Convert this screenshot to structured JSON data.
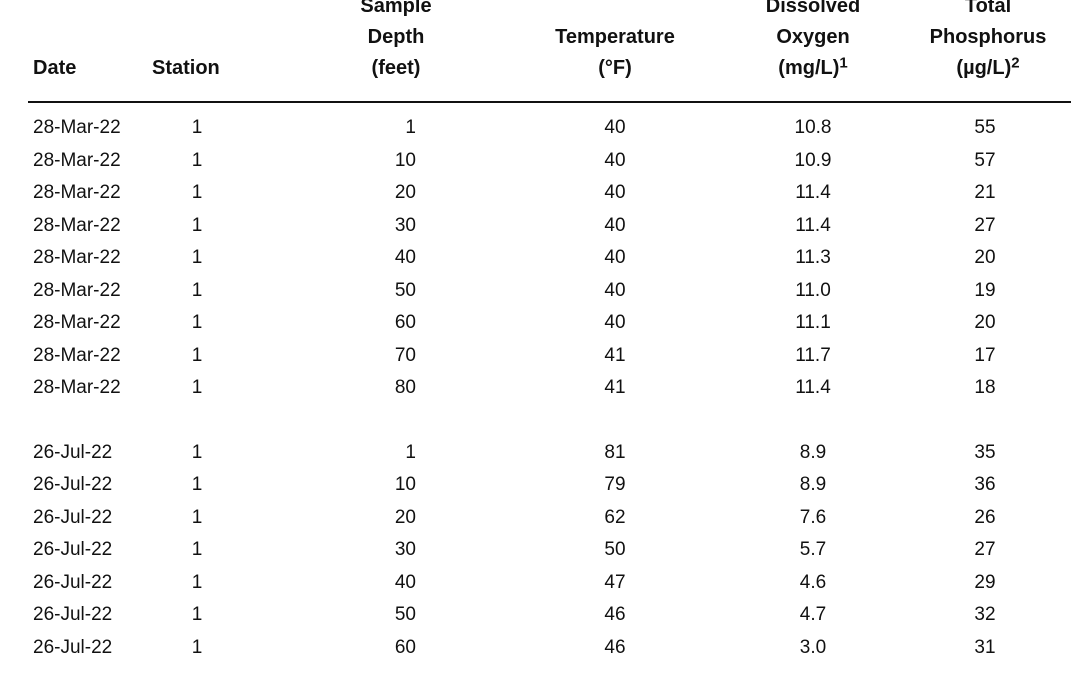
{
  "table": {
    "headers": {
      "date": [
        "Date"
      ],
      "station": [
        "Station"
      ],
      "depth": [
        "Sample",
        "Depth",
        "(feet)"
      ],
      "temperature": [
        "Temperature",
        "(°F)"
      ],
      "dissolved_oxygen": [
        "Dissolved",
        "Oxygen",
        "(mg/L)"
      ],
      "dissolved_oxygen_note": "1",
      "total_phosphorus": [
        "Total",
        "Phosphorus",
        "(µg/L)"
      ],
      "total_phosphorus_note": "2"
    },
    "groups": [
      {
        "rows": [
          {
            "date": "28-Mar-22",
            "station": "1",
            "depth": "1",
            "temperature": "40",
            "dissolved_oxygen": "10.8",
            "total_phosphorus": "55"
          },
          {
            "date": "28-Mar-22",
            "station": "1",
            "depth": "10",
            "temperature": "40",
            "dissolved_oxygen": "10.9",
            "total_phosphorus": "57"
          },
          {
            "date": "28-Mar-22",
            "station": "1",
            "depth": "20",
            "temperature": "40",
            "dissolved_oxygen": "11.4",
            "total_phosphorus": "21"
          },
          {
            "date": "28-Mar-22",
            "station": "1",
            "depth": "30",
            "temperature": "40",
            "dissolved_oxygen": "11.4",
            "total_phosphorus": "27"
          },
          {
            "date": "28-Mar-22",
            "station": "1",
            "depth": "40",
            "temperature": "40",
            "dissolved_oxygen": "11.3",
            "total_phosphorus": "20"
          },
          {
            "date": "28-Mar-22",
            "station": "1",
            "depth": "50",
            "temperature": "40",
            "dissolved_oxygen": "11.0",
            "total_phosphorus": "19"
          },
          {
            "date": "28-Mar-22",
            "station": "1",
            "depth": "60",
            "temperature": "40",
            "dissolved_oxygen": "11.1",
            "total_phosphorus": "20"
          },
          {
            "date": "28-Mar-22",
            "station": "1",
            "depth": "70",
            "temperature": "41",
            "dissolved_oxygen": "11.7",
            "total_phosphorus": "17"
          },
          {
            "date": "28-Mar-22",
            "station": "1",
            "depth": "80",
            "temperature": "41",
            "dissolved_oxygen": "11.4",
            "total_phosphorus": "18"
          }
        ]
      },
      {
        "rows": [
          {
            "date": "26-Jul-22",
            "station": "1",
            "depth": "1",
            "temperature": "81",
            "dissolved_oxygen": "8.9",
            "total_phosphorus": "35"
          },
          {
            "date": "26-Jul-22",
            "station": "1",
            "depth": "10",
            "temperature": "79",
            "dissolved_oxygen": "8.9",
            "total_phosphorus": "36"
          },
          {
            "date": "26-Jul-22",
            "station": "1",
            "depth": "20",
            "temperature": "62",
            "dissolved_oxygen": "7.6",
            "total_phosphorus": "26"
          },
          {
            "date": "26-Jul-22",
            "station": "1",
            "depth": "30",
            "temperature": "50",
            "dissolved_oxygen": "5.7",
            "total_phosphorus": "27"
          },
          {
            "date": "26-Jul-22",
            "station": "1",
            "depth": "40",
            "temperature": "47",
            "dissolved_oxygen": "4.6",
            "total_phosphorus": "29"
          },
          {
            "date": "26-Jul-22",
            "station": "1",
            "depth": "50",
            "temperature": "46",
            "dissolved_oxygen": "4.7",
            "total_phosphorus": "32"
          },
          {
            "date": "26-Jul-22",
            "station": "1",
            "depth": "60",
            "temperature": "46",
            "dissolved_oxygen": "3.0",
            "total_phosphorus": "31"
          }
        ]
      }
    ]
  }
}
